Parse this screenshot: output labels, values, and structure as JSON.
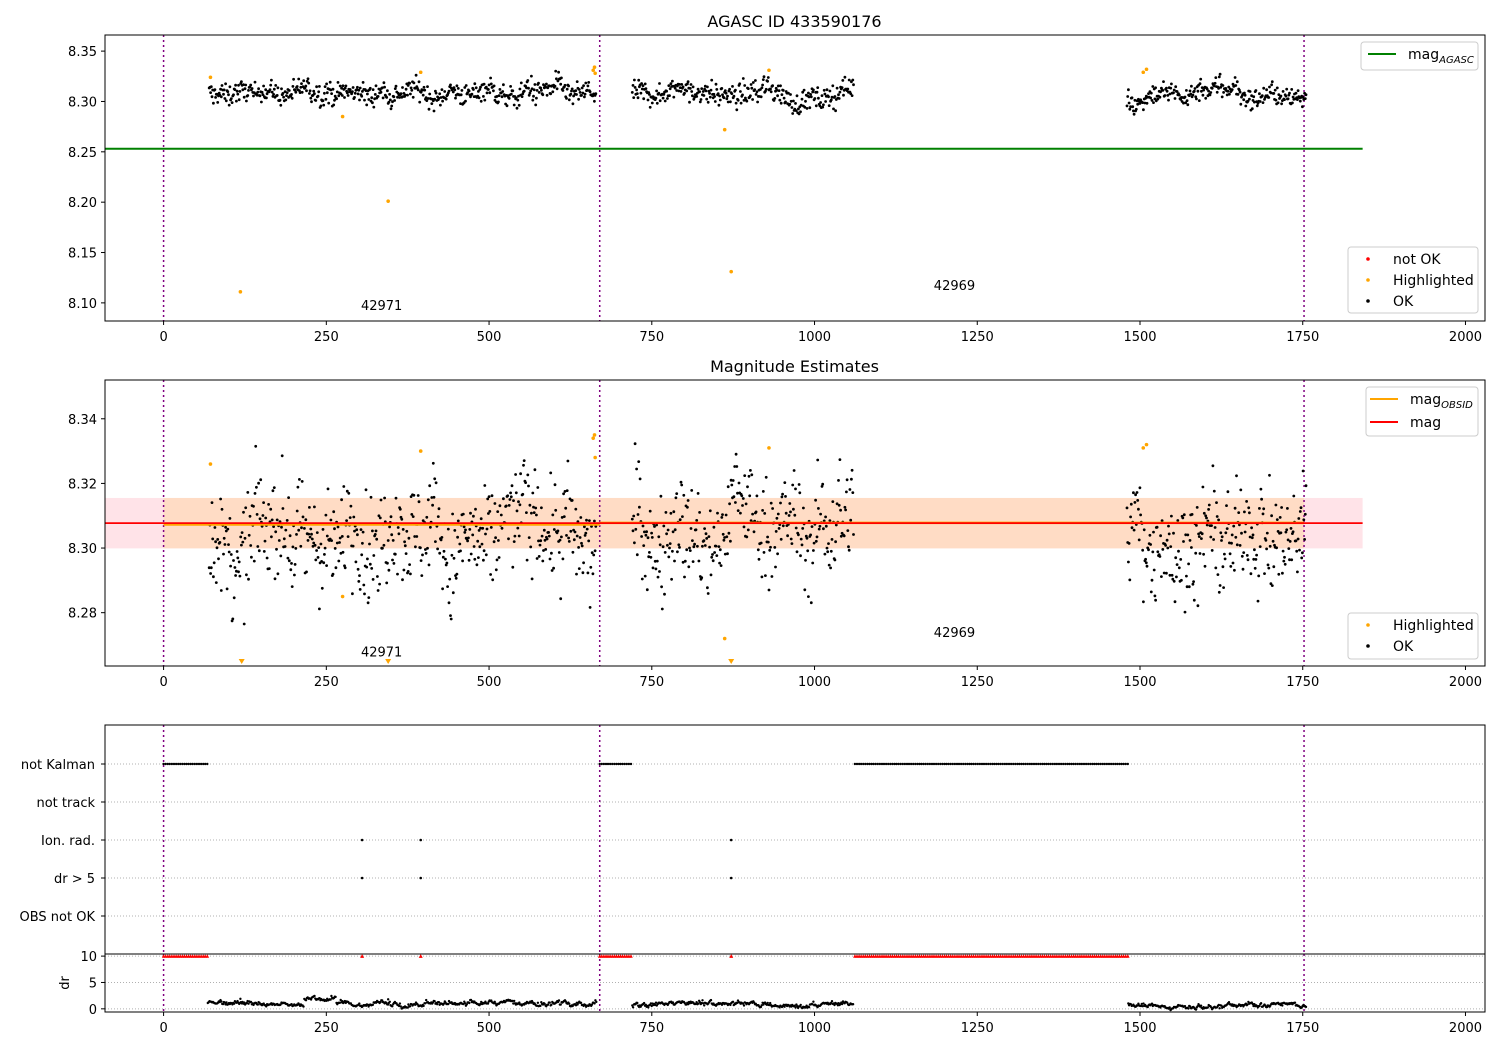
{
  "chart_data": [
    {
      "type": "scatter",
      "title": "AGASC ID 433590176",
      "xlim": [
        -90,
        2030
      ],
      "ylim": [
        8.082,
        8.366
      ],
      "x_ticks": [
        0,
        250,
        500,
        750,
        1000,
        1250,
        1500,
        1750,
        2000
      ],
      "y_ticks": [
        8.1,
        8.15,
        8.2,
        8.25,
        8.3,
        8.35
      ],
      "series": [
        {
          "name": "OK",
          "color": "#000000",
          "segments": [
            [
              70,
              665,
              8.307
            ],
            [
              720,
              1060,
              8.307
            ],
            [
              1480,
              1755,
              8.306
            ]
          ]
        },
        {
          "name": "Highlighted",
          "color": "#ffa500",
          "points": [
            [
              72,
              8.324
            ],
            [
              118,
              8.111
            ],
            [
              275,
              8.285
            ],
            [
              345,
              8.201
            ],
            [
              395,
              8.329
            ],
            [
              660,
              8.331
            ],
            [
              662,
              8.334
            ],
            [
              663,
              8.328
            ],
            [
              862,
              8.272
            ],
            [
              872,
              8.131
            ],
            [
              930,
              8.331
            ],
            [
              1505,
              8.329
            ],
            [
              1510,
              8.332
            ]
          ]
        },
        {
          "name": "not OK",
          "color": "#ff0000",
          "points": []
        }
      ],
      "lines": [
        {
          "name": "mag_AGASC",
          "legend_main": "mag",
          "legend_sub": "AGASC",
          "y": 8.253,
          "x": [
            -90,
            1842
          ],
          "color": "#008000"
        }
      ],
      "vlines": [
        0,
        670,
        1752
      ],
      "annotations": [
        {
          "text": "42971",
          "x": 335,
          "y": 8.093
        },
        {
          "text": "42969",
          "x": 1215,
          "y": 8.113
        }
      ],
      "legend_upper": [
        "mag_AGASC"
      ],
      "legend_lower": [
        "not OK",
        "Highlighted",
        "OK"
      ]
    },
    {
      "type": "scatter",
      "title": "Magnitude Estimates",
      "xlim": [
        -90,
        2030
      ],
      "ylim": [
        8.2635,
        8.352
      ],
      "x_ticks": [
        0,
        250,
        500,
        750,
        1000,
        1250,
        1500,
        1750,
        2000
      ],
      "y_ticks": [
        8.28,
        8.3,
        8.32,
        8.34
      ],
      "series": [
        {
          "name": "OK",
          "color": "#000000",
          "segments": [
            [
              70,
              665,
              8.306
            ],
            [
              720,
              1060,
              8.306
            ],
            [
              1480,
              1755,
              8.305
            ]
          ]
        },
        {
          "name": "Highlighted",
          "color": "#ffa500",
          "points": [
            [
              72,
              8.326
            ],
            [
              275,
              8.285
            ],
            [
              395,
              8.33
            ],
            [
              660,
              8.334
            ],
            [
              662,
              8.335
            ],
            [
              663,
              8.328
            ],
            [
              862,
              8.272
            ],
            [
              930,
              8.331
            ],
            [
              1505,
              8.331
            ],
            [
              1510,
              8.332
            ]
          ],
          "out_of_range": [
            120,
            345,
            872
          ]
        }
      ],
      "lines": [
        {
          "name": "mag_OBSID",
          "legend_main": "mag",
          "legend_sub": "OBSID",
          "color": "#ffa500",
          "segments": [
            {
              "x": [
                0,
                670
              ],
              "y": 8.3073
            },
            {
              "x": [
                670,
                1752
              ],
              "y": 8.3078
            }
          ]
        },
        {
          "name": "mag",
          "legend_main": "mag",
          "legend_sub": "",
          "color": "#ff0000",
          "y": 8.3077,
          "x": [
            -90,
            1842
          ]
        }
      ],
      "bands": [
        {
          "color": "#ffc0cb",
          "x": [
            -90,
            1842
          ],
          "y": [
            8.2999,
            8.3155
          ]
        },
        {
          "color": "#ffdab9",
          "x": [
            0,
            1752
          ],
          "y": [
            8.2999,
            8.3155
          ]
        }
      ],
      "vlines": [
        0,
        670,
        1752
      ],
      "annotations": [
        {
          "text": "42971",
          "x": 335,
          "y": 8.2665
        },
        {
          "text": "42969",
          "x": 1215,
          "y": 8.2725
        }
      ],
      "legend_upper": [
        "mag_OBSID",
        "mag"
      ],
      "legend_lower": [
        "Highlighted",
        "OK"
      ]
    },
    {
      "type": "scatter",
      "title": "",
      "xlim": [
        -90,
        2030
      ],
      "categories": [
        "not Kalman",
        "not track",
        "Ion. rad.",
        "dr > 5",
        "OBS not OK"
      ],
      "flags": [
        {
          "category": "not Kalman",
          "ranges": [
            [
              0,
              68
            ],
            [
              670,
              720
            ],
            [
              1062,
              1482
            ]
          ]
        },
        {
          "category": "not track",
          "ranges": []
        },
        {
          "category": "Ion. rad.",
          "points": [
            305,
            395,
            872
          ]
        },
        {
          "category": "dr > 5",
          "points": [
            305,
            395,
            872
          ]
        },
        {
          "category": "OBS not OK",
          "ranges": []
        }
      ]
    },
    {
      "type": "scatter",
      "title": "",
      "ylabel": "dr",
      "xlim": [
        -90,
        2030
      ],
      "ylim": [
        -0.6,
        10.4
      ],
      "x_ticks": [
        0,
        250,
        500,
        750,
        1000,
        1250,
        1500,
        1750,
        2000
      ],
      "y_ticks": [
        0,
        5,
        10
      ],
      "saturated_value": 10,
      "red_ranges": [
        [
          0,
          68
        ],
        [
          670,
          720
        ],
        [
          1062,
          1482
        ]
      ],
      "red_points": [
        305,
        395,
        872
      ],
      "black_segments": [
        [
          68,
          665,
          0.8
        ],
        [
          720,
          1060,
          0.6
        ],
        [
          1482,
          1755,
          0.5
        ]
      ]
    }
  ]
}
